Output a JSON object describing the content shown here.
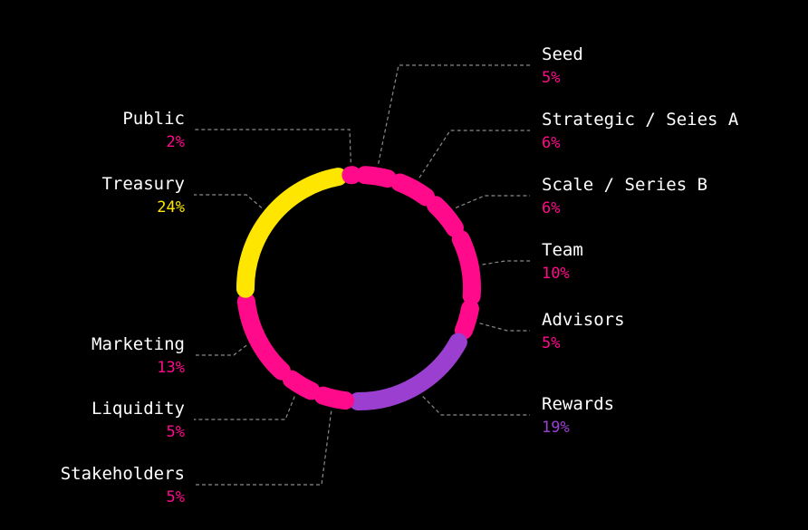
{
  "chart_data": {
    "type": "pie",
    "variant": "segmented-donut",
    "title": "",
    "slices": [
      {
        "label": "Seed",
        "value": 5,
        "display": "5%",
        "color": "#ff0a8a"
      },
      {
        "label": "Strategic / Seies A",
        "value": 6,
        "display": "6%",
        "color": "#ff0a8a"
      },
      {
        "label": "Scale / Series B",
        "value": 6,
        "display": "6%",
        "color": "#ff0a8a"
      },
      {
        "label": "Team",
        "value": 10,
        "display": "10%",
        "color": "#ff0a8a"
      },
      {
        "label": "Advisors",
        "value": 5,
        "display": "5%",
        "color": "#ff0a8a"
      },
      {
        "label": "Rewards",
        "value": 19,
        "display": "19%",
        "color": "#9b3fd1"
      },
      {
        "label": "Stakeholders",
        "value": 5,
        "display": "5%",
        "color": "#ff0a8a"
      },
      {
        "label": "Liquidity",
        "value": 5,
        "display": "5%",
        "color": "#ff0a8a"
      },
      {
        "label": "Marketing",
        "value": 13,
        "display": "13%",
        "color": "#ff0a8a"
      },
      {
        "label": "Treasury",
        "value": 24,
        "display": "24%",
        "color": "#ffe600"
      },
      {
        "label": "Public",
        "value": 2,
        "display": "2%",
        "color": "#ff0a8a"
      }
    ],
    "legend": "none",
    "grid": false
  }
}
